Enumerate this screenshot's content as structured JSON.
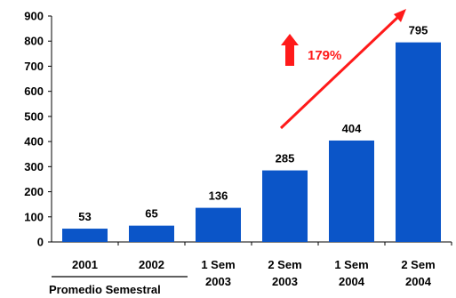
{
  "chart_data": {
    "type": "bar",
    "categories": [
      [
        "2001"
      ],
      [
        "2002"
      ],
      [
        "1 Sem",
        "2003"
      ],
      [
        "2 Sem",
        "2003"
      ],
      [
        "1 Sem",
        "2004"
      ],
      [
        "2 Sem",
        "2004"
      ]
    ],
    "values": [
      53,
      65,
      136,
      285,
      404,
      795
    ],
    "value_labels": [
      "53",
      "65",
      "136",
      "285",
      "404",
      "795"
    ],
    "ylim": [
      0,
      900
    ],
    "yticks": [
      0,
      100,
      200,
      300,
      400,
      500,
      600,
      700,
      800,
      900
    ],
    "ytick_labels": [
      "0",
      "100",
      "200",
      "300",
      "400",
      "500",
      "600",
      "700",
      "800",
      "900"
    ],
    "grid": false,
    "legend": "none",
    "bar_color": "#0B55C8",
    "group_label": "Promedio Semestral",
    "annotation": {
      "text": "179%",
      "color": "#FF1A1A"
    }
  }
}
